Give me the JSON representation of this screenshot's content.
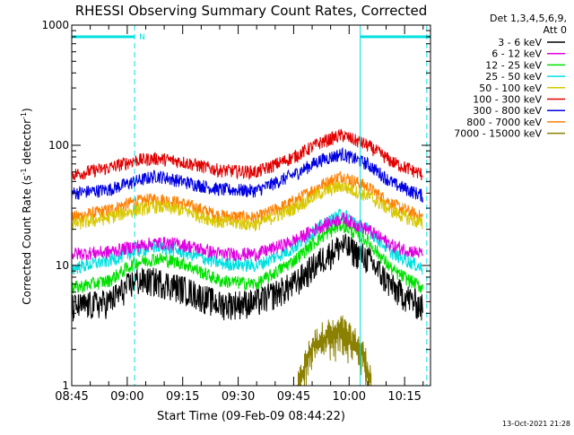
{
  "chart_data": {
    "type": "line",
    "title": "RHESSI Observing Summary Count Rates, Corrected",
    "xlabel": "Start Time (09-Feb-09 08:44:22)",
    "ylabel_main": "Corrected Count Rate (s",
    "ylabel_sup1": "-1",
    "ylabel_mid": " detector",
    "ylabel_sup2": "-1",
    "ylabel_end": ")",
    "y_scale": "log",
    "ylim": [
      1,
      1000
    ],
    "xlim": [
      "08:45",
      "10:22"
    ],
    "x_ticks": [
      "08:45",
      "09:00",
      "09:15",
      "09:30",
      "09:45",
      "10:00",
      "10:15"
    ],
    "y_ticks": [
      "1",
      "10",
      "100",
      "1000"
    ],
    "legend_header": [
      "Det 1,3,4,5,6,9,",
      "Att 0"
    ],
    "legend_placement": "top-right-outside",
    "timestamp": "13-Oct-2021 21:28",
    "flag_label": "N",
    "night_intervals": [
      [
        "08:45",
        "09:02"
      ],
      [
        "10:03",
        "10:22"
      ]
    ],
    "night_marker_times": [
      "08:45",
      "09:02",
      "10:03",
      "10:21"
    ],
    "series": [
      {
        "name": "3 - 6 keV",
        "color": "#000000",
        "x": [
          "08:45",
          "08:55",
          "09:02",
          "09:08",
          "09:15",
          "09:25",
          "09:35",
          "09:45",
          "09:52",
          "09:58",
          "10:05",
          "10:12",
          "10:20"
        ],
        "values": [
          4.5,
          5.0,
          7.5,
          7.5,
          6.5,
          4.8,
          5.0,
          7.0,
          11.0,
          15.0,
          11.5,
          6.5,
          4.5
        ]
      },
      {
        "name": "6 - 12 keV",
        "color": "#e000e0",
        "x": [
          "08:45",
          "08:55",
          "09:02",
          "09:08",
          "09:15",
          "09:25",
          "09:35",
          "09:45",
          "09:52",
          "09:58",
          "10:05",
          "10:12",
          "10:20"
        ],
        "values": [
          12.5,
          13.0,
          14.5,
          15.5,
          15.0,
          12.5,
          12.5,
          16.0,
          21.0,
          25.0,
          20.0,
          14.5,
          12.5
        ]
      },
      {
        "name": "12 - 25 keV",
        "color": "#00e000",
        "x": [
          "08:45",
          "08:55",
          "09:02",
          "09:08",
          "09:15",
          "09:25",
          "09:35",
          "09:45",
          "09:52",
          "09:58",
          "10:05",
          "10:12",
          "10:20"
        ],
        "values": [
          6.5,
          7.5,
          10.5,
          11.5,
          10.5,
          7.5,
          7.0,
          11.0,
          17.0,
          22.0,
          16.0,
          9.0,
          6.5
        ]
      },
      {
        "name": "25 - 50 keV",
        "color": "#00e0e0",
        "x": [
          "08:45",
          "08:55",
          "09:02",
          "09:08",
          "09:15",
          "09:25",
          "09:35",
          "09:45",
          "09:52",
          "09:58",
          "10:05",
          "10:12",
          "10:20"
        ],
        "values": [
          9.5,
          11.0,
          13.0,
          14.5,
          13.0,
          10.5,
          10.0,
          14.0,
          21.0,
          27.0,
          20.0,
          12.5,
          9.5
        ]
      },
      {
        "name": "50 - 100 keV",
        "color": "#d8c800",
        "x": [
          "08:45",
          "08:55",
          "09:02",
          "09:08",
          "09:15",
          "09:25",
          "09:35",
          "09:45",
          "09:52",
          "09:58",
          "10:05",
          "10:12",
          "10:20"
        ],
        "values": [
          22.0,
          25.0,
          29.0,
          31.0,
          29.0,
          23.0,
          22.0,
          30.0,
          40.0,
          46.0,
          38.0,
          28.0,
          22.0
        ]
      },
      {
        "name": "100 - 300 keV",
        "color": "#e00000",
        "x": [
          "08:45",
          "08:55",
          "09:02",
          "09:08",
          "09:15",
          "09:25",
          "09:35",
          "09:45",
          "09:52",
          "09:58",
          "10:05",
          "10:12",
          "10:20"
        ],
        "values": [
          57.0,
          65.0,
          75.0,
          78.0,
          73.0,
          62.0,
          60.0,
          80.0,
          105.0,
          122.0,
          100.0,
          72.0,
          57.0
        ]
      },
      {
        "name": "300 - 800 keV",
        "color": "#0000e0",
        "x": [
          "08:45",
          "08:55",
          "09:02",
          "09:08",
          "09:15",
          "09:25",
          "09:35",
          "09:45",
          "09:52",
          "09:58",
          "10:05",
          "10:12",
          "10:20"
        ],
        "values": [
          40.0,
          43.0,
          50.0,
          56.0,
          50.0,
          43.0,
          42.0,
          57.0,
          75.0,
          85.0,
          70.0,
          48.0,
          38.0
        ]
      },
      {
        "name": "800 - 7000 keV",
        "color": "#ff8000",
        "x": [
          "08:45",
          "08:55",
          "09:02",
          "09:08",
          "09:15",
          "09:25",
          "09:35",
          "09:45",
          "09:52",
          "09:58",
          "10:05",
          "10:12",
          "10:20"
        ],
        "values": [
          25.0,
          29.0,
          34.0,
          36.0,
          33.0,
          26.0,
          25.0,
          34.0,
          46.0,
          56.0,
          45.0,
          32.0,
          25.0
        ]
      },
      {
        "name": "7000 - 15000 keV",
        "color": "#8b8000",
        "x": [
          "09:46",
          "09:48",
          "09:50",
          "09:52",
          "09:54",
          "09:56",
          "09:58",
          "10:00",
          "10:02",
          "10:04",
          "10:06"
        ],
        "values": [
          1.0,
          1.6,
          2.3,
          2.6,
          3.0,
          2.8,
          3.2,
          2.7,
          2.4,
          1.9,
          1.2
        ]
      }
    ]
  }
}
